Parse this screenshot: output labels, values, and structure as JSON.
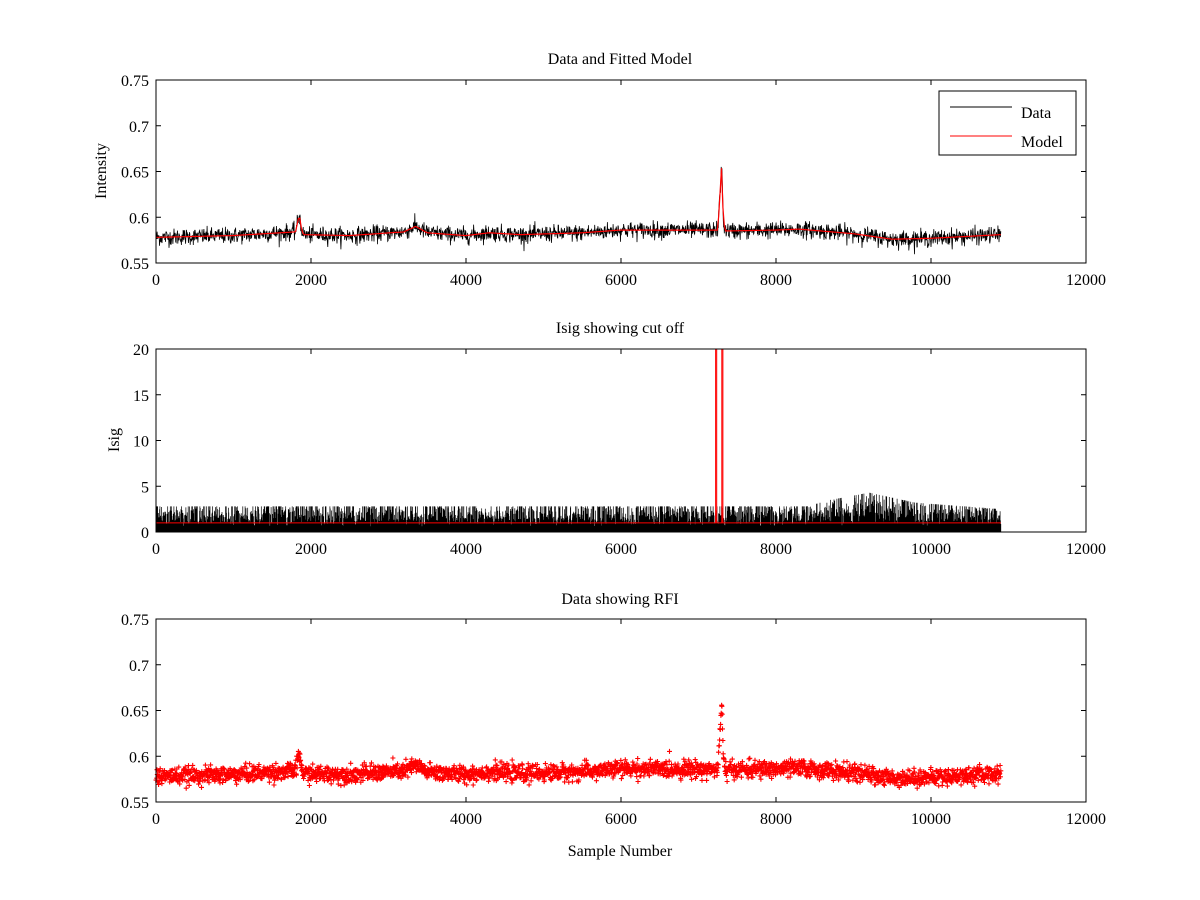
{
  "chart_data": [
    {
      "type": "line",
      "title": "Data and Fitted Model",
      "xlabel": "",
      "ylabel": "Intensity",
      "xlim": [
        0,
        12000
      ],
      "ylim": [
        0.55,
        0.75
      ],
      "xticks": [
        "0",
        "2000",
        "4000",
        "6000",
        "8000",
        "10000",
        "12000"
      ],
      "yticks": [
        "0.55",
        "0.6",
        "0.65",
        "0.7",
        "0.75"
      ],
      "xtick_values": [
        0,
        2000,
        4000,
        6000,
        8000,
        10000,
        12000
      ],
      "ytick_values": [
        0.55,
        0.6,
        0.65,
        0.7,
        0.75
      ],
      "legend": {
        "position": "top-right",
        "entries": [
          "Data",
          "Model"
        ]
      },
      "series": [
        {
          "name": "Data",
          "color": "#000000",
          "noise": 0.0045,
          "x": [
            0,
            1000,
            1800,
            1850,
            1870,
            1900,
            2500,
            3200,
            3350,
            3500,
            4000,
            4300,
            4700,
            5500,
            6000,
            7000,
            7250,
            7300,
            7320,
            7350,
            8000,
            8300,
            9000,
            9500,
            10000,
            10900
          ],
          "y": [
            0.578,
            0.58,
            0.584,
            0.603,
            0.59,
            0.581,
            0.58,
            0.584,
            0.59,
            0.583,
            0.58,
            0.583,
            0.581,
            0.583,
            0.586,
            0.586,
            0.586,
            0.658,
            0.596,
            0.585,
            0.586,
            0.587,
            0.582,
            0.576,
            0.577,
            0.581
          ]
        },
        {
          "name": "Model",
          "color": "#ff0000",
          "noise": 0,
          "x": [
            0,
            1000,
            1800,
            1850,
            1870,
            1900,
            2500,
            3200,
            3350,
            3500,
            4000,
            4300,
            4700,
            5500,
            6000,
            7000,
            7250,
            7300,
            7320,
            7350,
            8000,
            8300,
            9000,
            9500,
            10000,
            10900
          ],
          "y": [
            0.578,
            0.58,
            0.584,
            0.603,
            0.59,
            0.581,
            0.58,
            0.584,
            0.59,
            0.583,
            0.58,
            0.583,
            0.581,
            0.583,
            0.586,
            0.586,
            0.586,
            0.658,
            0.596,
            0.585,
            0.586,
            0.587,
            0.582,
            0.576,
            0.577,
            0.581
          ]
        }
      ]
    },
    {
      "type": "line",
      "title": "Isig showing cut off",
      "xlabel": "",
      "ylabel": "Isig",
      "xlim": [
        0,
        12000
      ],
      "ylim": [
        0,
        20
      ],
      "xticks": [
        "0",
        "2000",
        "4000",
        "6000",
        "8000",
        "10000",
        "12000"
      ],
      "yticks": [
        "0",
        "5",
        "10",
        "15",
        "20"
      ],
      "xtick_values": [
        0,
        2000,
        4000,
        6000,
        8000,
        10000,
        12000
      ],
      "ytick_values": [
        0,
        5,
        10,
        15,
        20
      ],
      "series": [
        {
          "name": "",
          "color": "#000000",
          "kind": "noise",
          "x": [
            0,
            8400,
            8700,
            9200,
            9800,
            10900
          ],
          "envelope": [
            2.8,
            2.8,
            3.5,
            4.3,
            3.2,
            2.5
          ]
        },
        {
          "name": "",
          "color": "#ff0000",
          "kind": "step",
          "x": [
            0,
            7220,
            7220,
            7235,
            7235,
            7300,
            7300,
            7315,
            7315,
            10900
          ],
          "y": [
            1.0,
            1.0,
            20,
            20,
            1.0,
            1.0,
            20,
            20,
            1.0,
            1.0
          ]
        }
      ]
    },
    {
      "type": "scatter",
      "title": "Data showing RFI",
      "xlabel": "Sample Number",
      "ylabel": "",
      "xlim": [
        0,
        12000
      ],
      "ylim": [
        0.55,
        0.75
      ],
      "xticks": [
        "0",
        "2000",
        "4000",
        "6000",
        "8000",
        "10000",
        "12000"
      ],
      "yticks": [
        "0.55",
        "0.6",
        "0.65",
        "0.7",
        "0.75"
      ],
      "xtick_values": [
        0,
        2000,
        4000,
        6000,
        8000,
        10000,
        12000
      ],
      "ytick_values": [
        0.55,
        0.6,
        0.65,
        0.7,
        0.75
      ],
      "series": [
        {
          "name": "",
          "color": "#ff0000",
          "noise": 0.0045,
          "x": [
            0,
            1000,
            1800,
            1850,
            1870,
            1900,
            2500,
            3200,
            3350,
            3500,
            4000,
            4300,
            4700,
            5500,
            6000,
            7000,
            7250,
            7300,
            7320,
            7350,
            8000,
            8300,
            9000,
            9500,
            10000,
            10900
          ],
          "y": [
            0.578,
            0.58,
            0.584,
            0.603,
            0.59,
            0.581,
            0.58,
            0.584,
            0.59,
            0.583,
            0.58,
            0.583,
            0.581,
            0.583,
            0.586,
            0.586,
            0.586,
            0.658,
            0.596,
            0.585,
            0.586,
            0.587,
            0.582,
            0.576,
            0.577,
            0.581
          ]
        }
      ]
    }
  ]
}
